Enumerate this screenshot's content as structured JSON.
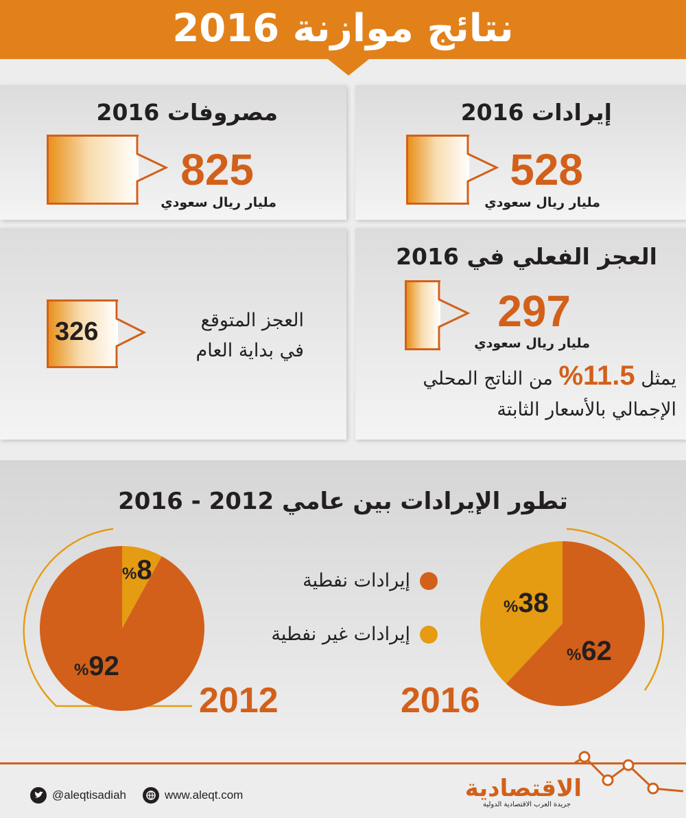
{
  "header": {
    "title": "نتائج موازنة 2016"
  },
  "revenues": {
    "title": "إيرادات 2016",
    "value": "528",
    "unit": "مليار ريال سعودي"
  },
  "expenses": {
    "title": "مصروفات 2016",
    "value": "825",
    "unit": "مليار ريال سعودي"
  },
  "actual_deficit": {
    "title": "العجز الفعلي في 2016",
    "value": "297",
    "unit": "مليار ريال سعودي",
    "gdp_line1_pre": "يمثل",
    "gdp_pct": "11.5%",
    "gdp_line1_post": "من الناتج المحلي",
    "gdp_line2": "الإجمالي بالأسعار الثابتة"
  },
  "expected_deficit": {
    "line1": "العجز المتوقع",
    "line2": "في بداية العام",
    "value": "326"
  },
  "chart_data": {
    "type": "pie",
    "title": "تطور الإيرادات بين عامي 2012 - 2016",
    "legend": [
      {
        "label": "إيرادات نفطية",
        "color": "#d2601a"
      },
      {
        "label": "إيرادات غير نفطية",
        "color": "#e59b12"
      }
    ],
    "charts": [
      {
        "year": "2016",
        "slices": [
          {
            "label": "إيرادات نفطية",
            "value": 62
          },
          {
            "label": "إيرادات غير نفطية",
            "value": 38
          }
        ]
      },
      {
        "year": "2012",
        "slices": [
          {
            "label": "إيرادات نفطية",
            "value": 92
          },
          {
            "label": "إيرادات غير نفطية",
            "value": 8
          }
        ]
      }
    ],
    "pct_sign": "%"
  },
  "footer": {
    "twitter": "@aleqtisadiah",
    "website": "www.aleqt.com",
    "logo": "الاقتصادية",
    "tagline": "جريدة العرب الاقتصادية الدولية"
  },
  "colors": {
    "accent": "#d2601a",
    "gold": "#e59b12",
    "header": "#e2811a"
  }
}
